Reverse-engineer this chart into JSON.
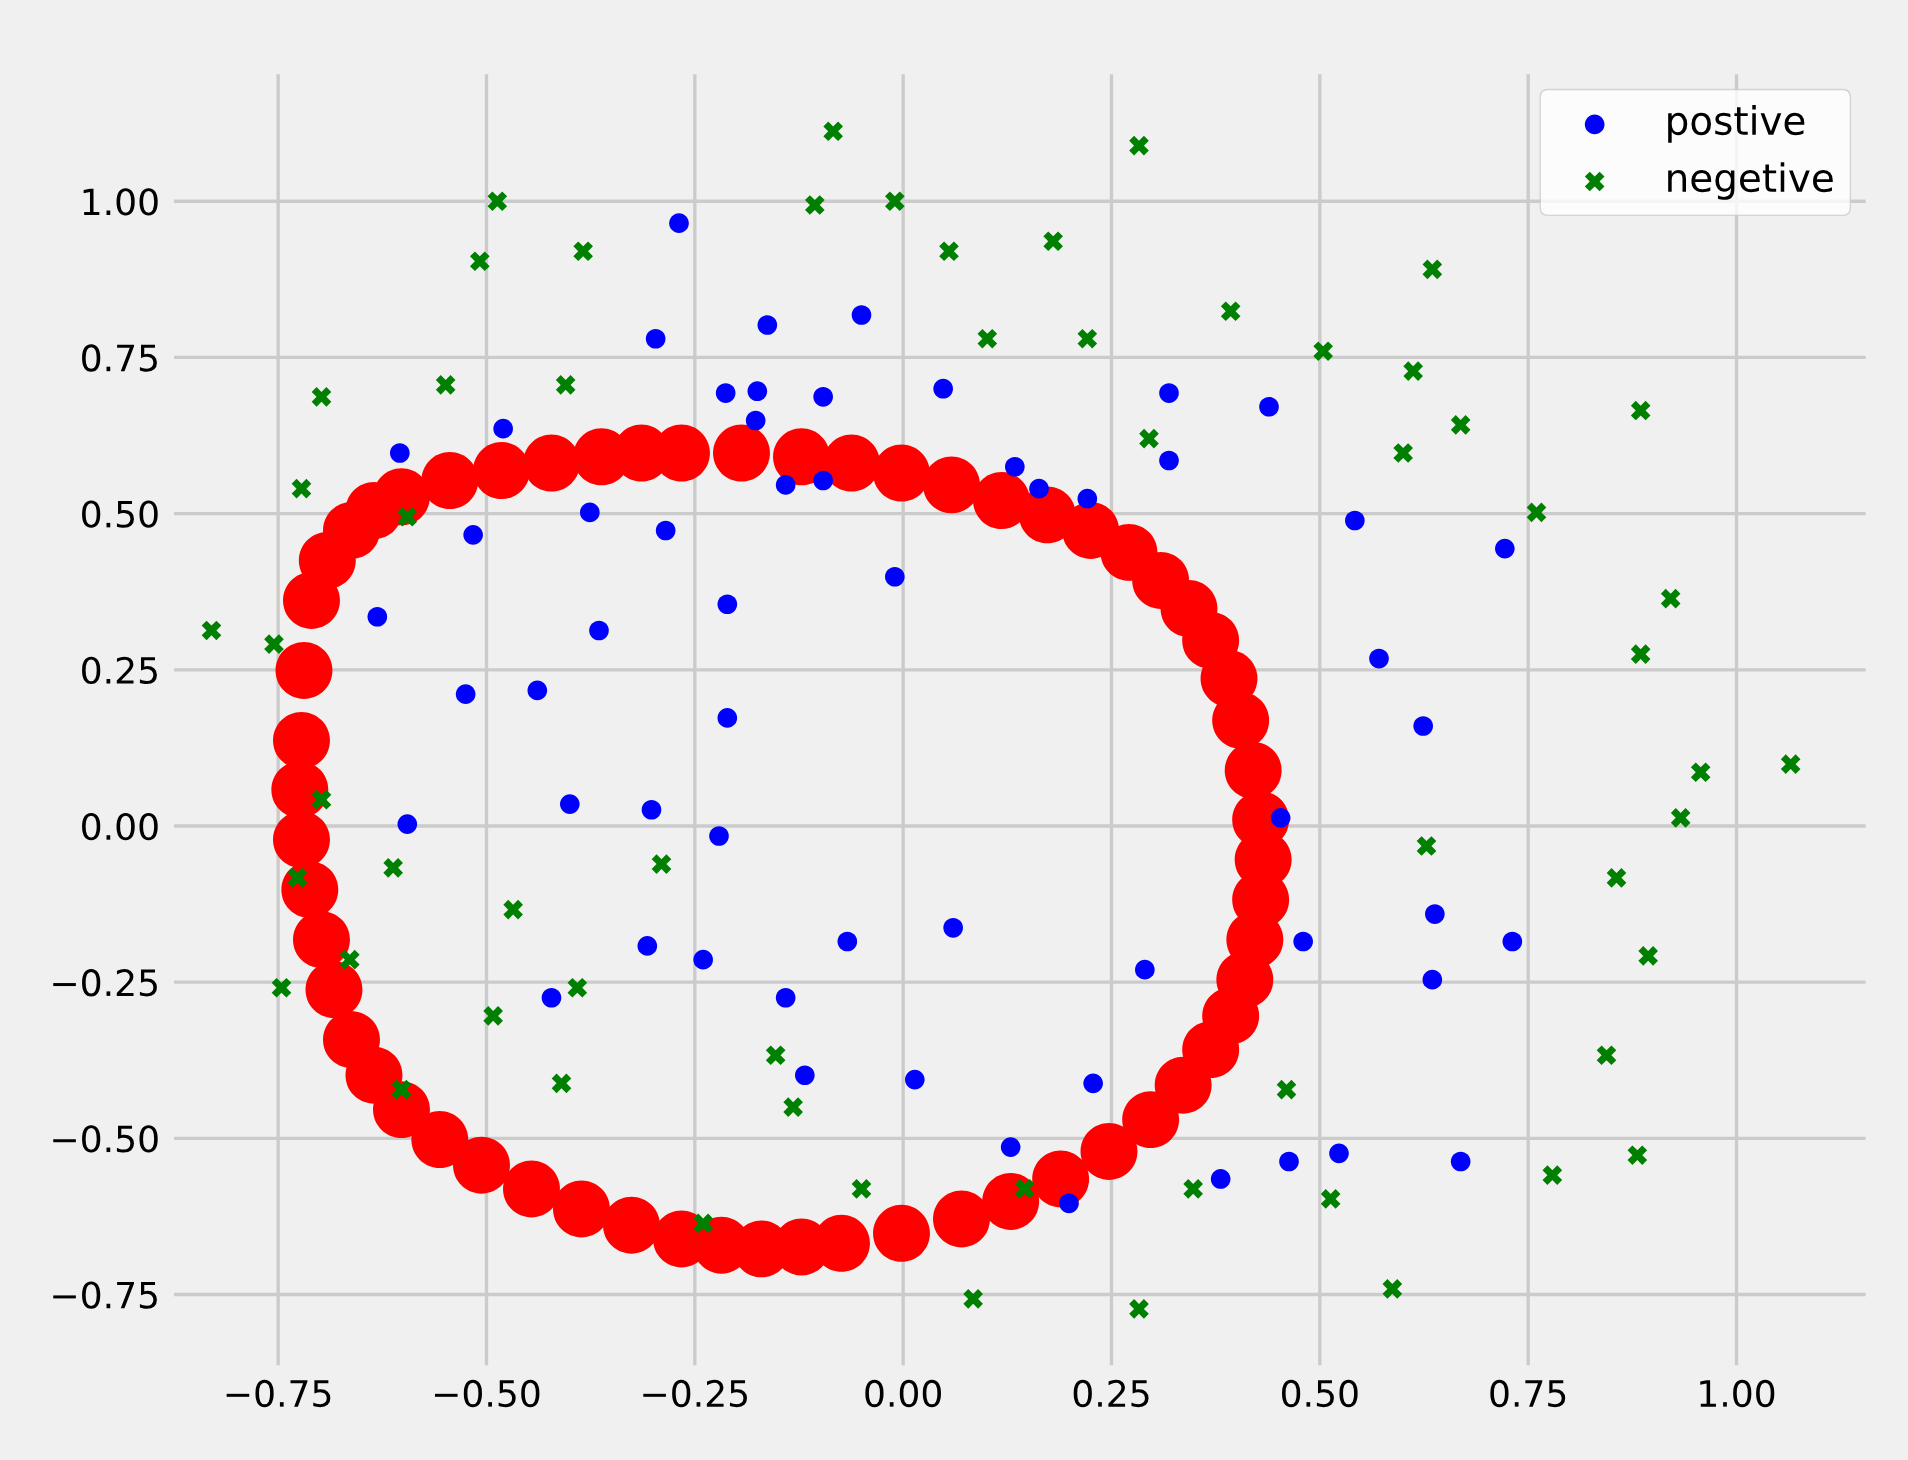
{
  "chart_data": {
    "type": "scatter",
    "xlim": [
      -0.88,
      1.16
    ],
    "ylim": [
      -0.87,
      1.21
    ],
    "xticks": [
      {
        "value": -0.75,
        "label": "−0.75"
      },
      {
        "value": -0.5,
        "label": "−0.50"
      },
      {
        "value": -0.25,
        "label": "−0.25"
      },
      {
        "value": 0,
        "label": "0.00"
      },
      {
        "value": 0.25,
        "label": "0.25"
      },
      {
        "value": 0.5,
        "label": "0.50"
      },
      {
        "value": 0.75,
        "label": "0.75"
      },
      {
        "value": 1,
        "label": "1.00"
      }
    ],
    "yticks": [
      {
        "value": -0.75,
        "label": "−0.75"
      },
      {
        "value": -0.5,
        "label": "−0.50"
      },
      {
        "value": -0.25,
        "label": "−0.25"
      },
      {
        "value": 0,
        "label": "0.00"
      },
      {
        "value": 0.25,
        "label": "0.25"
      },
      {
        "value": 0.5,
        "label": "0.50"
      },
      {
        "value": 0.75,
        "label": "0.75"
      },
      {
        "value": 1,
        "label": "1.00"
      }
    ],
    "grid": true,
    "legend": "top right",
    "series": [
      {
        "type": "scatter",
        "color": "#ff0000",
        "marker": "circle",
        "x": [
          -0.722,
          -0.719,
          -0.71,
          -0.691,
          -0.662,
          -0.635,
          -0.602,
          -0.544,
          -0.482,
          -0.422,
          -0.362,
          -0.314,
          -0.266,
          -0.194,
          -0.122,
          -0.062,
          -0.002,
          0.058,
          0.118,
          0.173,
          0.225,
          0.271,
          0.309,
          0.343,
          0.369,
          0.391,
          0.405,
          0.42,
          0.429,
          0.432,
          0.429,
          0.422,
          0.41,
          0.393,
          0.369,
          0.336,
          0.297,
          0.247,
          0.189,
          0.129,
          0.07,
          -0.002,
          -0.074,
          -0.122,
          -0.17,
          -0.218,
          -0.266,
          -0.326,
          -0.386,
          -0.446,
          -0.506,
          -0.556,
          -0.602,
          -0.635,
          -0.662,
          -0.683,
          -0.698,
          -0.712,
          -0.722,
          -0.724
        ],
        "values": [
          0.137,
          0.249,
          0.361,
          0.425,
          0.473,
          0.505,
          0.527,
          0.553,
          0.569,
          0.581,
          0.591,
          0.597,
          0.597,
          0.597,
          0.591,
          0.581,
          0.565,
          0.546,
          0.521,
          0.498,
          0.473,
          0.438,
          0.393,
          0.348,
          0.297,
          0.236,
          0.169,
          0.089,
          0.01,
          -0.054,
          -0.118,
          -0.182,
          -0.246,
          -0.304,
          -0.358,
          -0.415,
          -0.47,
          -0.521,
          -0.565,
          -0.601,
          -0.629,
          -0.652,
          -0.668,
          -0.674,
          -0.677,
          -0.671,
          -0.661,
          -0.639,
          -0.613,
          -0.581,
          -0.543,
          -0.502,
          -0.454,
          -0.399,
          -0.342,
          -0.262,
          -0.182,
          -0.102,
          -0.022,
          0.058
        ]
      },
      {
        "name": "postive",
        "color": "#0000ff",
        "marker": "circle",
        "x": [
          -0.269,
          -0.297,
          -0.163,
          -0.05,
          -0.213,
          -0.175,
          -0.177,
          -0.096,
          -0.48,
          -0.604,
          0.048,
          0.319,
          0.439,
          0.319,
          0.134,
          0.163,
          0.221,
          -0.141,
          -0.096,
          -0.516,
          -0.376,
          -0.285,
          0.542,
          -0.01,
          -0.211,
          -0.631,
          -0.365,
          0.571,
          0.722,
          -0.525,
          -0.439,
          -0.211,
          0.624,
          -0.4,
          -0.302,
          -0.595,
          -0.221,
          0.453,
          0.06,
          -0.067,
          0.48,
          0.638,
          0.731,
          -0.307,
          -0.24,
          0.29,
          0.635,
          -0.422,
          -0.141,
          -0.118,
          0.014,
          0.228,
          0.129,
          0.463,
          0.523,
          0.669,
          0.381,
          0.199
        ],
        "values": [
          0.965,
          0.78,
          0.802,
          0.818,
          0.693,
          0.696,
          0.649,
          0.687,
          0.636,
          0.597,
          0.7,
          0.693,
          0.671,
          0.585,
          0.575,
          0.54,
          0.524,
          0.546,
          0.553,
          0.466,
          0.502,
          0.473,
          0.489,
          0.399,
          0.355,
          0.335,
          0.313,
          0.268,
          0.444,
          0.211,
          0.217,
          0.173,
          0.16,
          0.035,
          0.026,
          0.003,
          -0.016,
          0.013,
          -0.163,
          -0.185,
          -0.185,
          -0.141,
          -0.185,
          -0.192,
          -0.214,
          -0.23,
          -0.246,
          -0.275,
          -0.275,
          -0.399,
          -0.406,
          -0.412,
          -0.514,
          -0.537,
          -0.524,
          -0.537,
          -0.565,
          -0.604
        ]
      },
      {
        "name": "negetive",
        "color": "#008000",
        "marker": "cross",
        "x": [
          -0.084,
          0.283,
          -0.487,
          -0.01,
          -0.106,
          -0.508,
          -0.384,
          0.055,
          0.18,
          0.635,
          0.393,
          0.101,
          0.221,
          0.504,
          0.612,
          0.669,
          0.885,
          0.6,
          0.295,
          -0.698,
          -0.549,
          -0.405,
          -0.722,
          -0.595,
          0.76,
          -0.83,
          -0.755,
          0.921,
          0.885,
          1.065,
          0.957,
          0.933,
          -0.698,
          -0.29,
          -0.612,
          0.628,
          0.856,
          -0.727,
          -0.468,
          0.894,
          -0.664,
          -0.391,
          -0.746,
          -0.492,
          -0.153,
          0.844,
          -0.41,
          -0.132,
          -0.602,
          0.46,
          0.881,
          0.779,
          0.348,
          0.146,
          -0.05,
          0.513,
          -0.24,
          0.587,
          0.084,
          0.283
        ],
        "values": [
          1.112,
          1.089,
          1.0,
          1.0,
          0.994,
          0.904,
          0.92,
          0.92,
          0.936,
          0.891,
          0.824,
          0.78,
          0.78,
          0.76,
          0.728,
          0.642,
          0.665,
          0.597,
          0.62,
          0.687,
          0.706,
          0.706,
          0.54,
          0.495,
          0.502,
          0.313,
          0.291,
          0.364,
          0.275,
          0.099,
          0.086,
          0.013,
          0.042,
          -0.061,
          -0.067,
          -0.032,
          -0.083,
          -0.083,
          -0.134,
          -0.208,
          -0.214,
          -0.259,
          -0.259,
          -0.304,
          -0.367,
          -0.367,
          -0.412,
          -0.45,
          -0.422,
          -0.422,
          -0.527,
          -0.559,
          -0.581,
          -0.581,
          -0.581,
          -0.597,
          -0.636,
          -0.741,
          -0.757,
          -0.773
        ]
      }
    ]
  }
}
